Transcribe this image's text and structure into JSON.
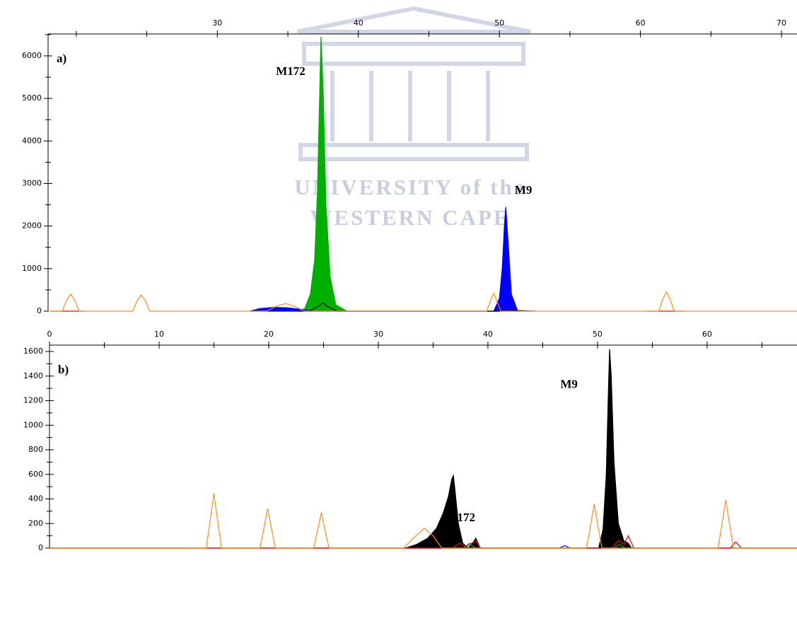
{
  "chart_data": [
    {
      "type": "line",
      "label": "a)",
      "xlim": [
        18,
        71.1
      ],
      "xticks": [
        30,
        40,
        50,
        60,
        70
      ],
      "xminorticks": [
        20,
        25,
        35,
        45,
        55,
        65
      ],
      "ylim": [
        0,
        6515
      ],
      "yticks": [
        0,
        1000,
        2000,
        3000,
        4000,
        5000,
        6000
      ],
      "yminorticks": [
        500,
        1500,
        2500,
        3500,
        4500,
        5500,
        6500
      ],
      "annotations": [
        {
          "text": "M172",
          "x": 35.2,
          "y": 5615
        },
        {
          "text": "M9",
          "x": 51.7,
          "y": 2824
        }
      ],
      "series": [
        {
          "color": "#00b000",
          "fill": true,
          "x": [
            35.6,
            36.2,
            36.6,
            36.9,
            37.1,
            37.25,
            37.35,
            37.5,
            37.7,
            38.0,
            38.4,
            39.2
          ],
          "values": [
            0,
            60,
            400,
            1200,
            2800,
            5000,
            6450,
            5200,
            2500,
            800,
            150,
            0
          ]
        },
        {
          "color": "#0000ff",
          "fill": true,
          "x": [
            32.3,
            33,
            34,
            35,
            36,
            36.8,
            49.6,
            50.0,
            50.2,
            50.35,
            50.45,
            50.6,
            50.85,
            51.3
          ],
          "values": [
            0,
            60,
            90,
            80,
            40,
            0,
            0,
            300,
            1000,
            2000,
            2450,
            1700,
            400,
            0
          ]
        },
        {
          "color": "#000000",
          "fill": false,
          "x": [
            36.5,
            37.2,
            37.5,
            37.8,
            38.5,
            49.8,
            50.4,
            51.0,
            52.5
          ],
          "values": [
            0,
            120,
            200,
            110,
            0,
            0,
            40,
            20,
            0
          ]
        },
        {
          "color": "#ff0000",
          "fill": false,
          "x": [
            18.3,
            20.6,
            21,
            60.5,
            63.0
          ],
          "values": [
            0,
            0,
            null,
            0,
            0
          ]
        },
        {
          "color": "#ff8c1a",
          "fill": false,
          "x": [
            18,
            19.0,
            19.3,
            19.6,
            19.9,
            20.2,
            24.0,
            24.3,
            24.6,
            24.9,
            25.2,
            33.5,
            34.2,
            34.85,
            35.5,
            36.2,
            49.1,
            49.4,
            49.6,
            49.8,
            50.1,
            61.3,
            61.6,
            61.85,
            62.1,
            62.4,
            71.1
          ],
          "values": [
            0,
            0,
            250,
            400,
            250,
            0,
            0,
            240,
            380,
            240,
            0,
            0,
            120,
            180,
            110,
            0,
            0,
            280,
            420,
            250,
            0,
            0,
            300,
            450,
            280,
            0,
            0
          ]
        }
      ]
    },
    {
      "type": "line",
      "label": "b)",
      "xlim": [
        0,
        68.2
      ],
      "xticks": [
        0,
        10,
        20,
        30,
        40,
        50,
        60
      ],
      "xminorticks": [
        5,
        15,
        25,
        35,
        45,
        55,
        65
      ],
      "ylim": [
        0,
        1652
      ],
      "yticks": [
        0,
        200,
        400,
        600,
        800,
        1000,
        1200,
        1400,
        1600
      ],
      "yminorticks": [
        100,
        300,
        500,
        700,
        900,
        1100,
        1300,
        1500
      ],
      "annotations": [
        {
          "text": "M9",
          "x": 47.4,
          "y": 1326
        },
        {
          "text": "M172",
          "x": 37.5,
          "y": 242
        }
      ],
      "series": [
        {
          "color": "#000000",
          "fill": true,
          "x": [
            32.5,
            33.5,
            34.5,
            35.3,
            35.9,
            36.4,
            36.7,
            36.85,
            37.0,
            37.3,
            37.7,
            38.2,
            38.6,
            38.9,
            39.3,
            50.1,
            50.5,
            50.8,
            51.0,
            51.1,
            51.25,
            51.5,
            51.9,
            52.4,
            52.8,
            53.1,
            53.5
          ],
          "values": [
            0,
            30,
            80,
            160,
            280,
            420,
            560,
            590,
            470,
            200,
            40,
            0,
            40,
            80,
            0,
            0,
            150,
            600,
            1300,
            1620,
            1400,
            700,
            200,
            60,
            40,
            0,
            0
          ]
        },
        {
          "color": "#0000ff",
          "fill": false,
          "x": [
            0,
            46.5,
            47,
            47.5,
            68.2
          ],
          "values": [
            0,
            0,
            20,
            0,
            0
          ]
        },
        {
          "color": "#00b000",
          "fill": false,
          "x": [
            0,
            37.8,
            38.3,
            38.8,
            51.5,
            52.0,
            52.5,
            68.2
          ],
          "values": [
            0,
            0,
            40,
            0,
            0,
            30,
            0,
            0
          ]
        },
        {
          "color": "#ff0000",
          "fill": false,
          "x": [
            0,
            36.8,
            37.4,
            38.0,
            38.5,
            38.9,
            39.3,
            51.3,
            51.9,
            52.4,
            52.8,
            53.3,
            62.1,
            62.6,
            63.1,
            68.2
          ],
          "values": [
            0,
            0,
            40,
            10,
            40,
            60,
            0,
            0,
            60,
            30,
            100,
            0,
            0,
            50,
            0,
            0
          ]
        },
        {
          "color": "#ff8c1a",
          "fill": false,
          "x": [
            0,
            14.3,
            14.7,
            15.0,
            15.3,
            15.7,
            19.2,
            19.6,
            19.9,
            20.2,
            20.6,
            24.1,
            24.5,
            24.8,
            25.1,
            25.5,
            32.3,
            33.3,
            34.2,
            35.0,
            35.8,
            49.0,
            49.4,
            49.7,
            50.0,
            50.4,
            61.0,
            61.4,
            61.7,
            62.0,
            62.4,
            68.2
          ],
          "values": [
            0,
            0,
            250,
            445,
            250,
            0,
            0,
            180,
            320,
            180,
            0,
            0,
            160,
            290,
            160,
            0,
            0,
            90,
            160,
            100,
            0,
            0,
            200,
            360,
            200,
            0,
            0,
            220,
            390,
            220,
            0,
            0
          ]
        }
      ]
    }
  ],
  "watermark": [
    "UNIVERSITY of the",
    "WESTERN CAPE"
  ]
}
